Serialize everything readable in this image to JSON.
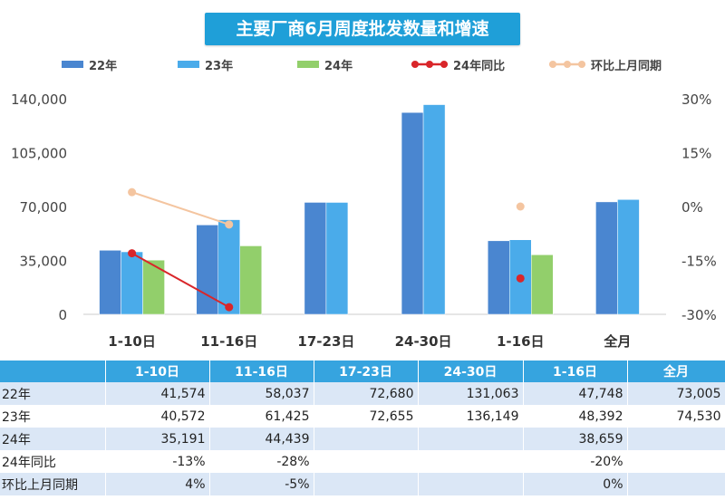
{
  "title": "主要厂商6月周度批发数量和增速",
  "legend": {
    "s22": "22年",
    "s23": "23年",
    "s24": "24年",
    "yoy": "24年同比",
    "mom": "环比上月同期"
  },
  "colors": {
    "s22": "#4a86d0",
    "s23": "#4aabea",
    "s24": "#92cf6b",
    "yoy": "#d9262a",
    "mom": "#f4c5a0",
    "header": "#36a4df",
    "row_band": "#dbe7f6"
  },
  "chart_data": {
    "type": "bar",
    "categories": [
      "1-10日",
      "11-16日",
      "17-23日",
      "24-30日",
      "1-16日",
      "全月"
    ],
    "series": [
      {
        "name": "22年",
        "values": [
          41574,
          58037,
          72680,
          131063,
          47748,
          73005
        ]
      },
      {
        "name": "23年",
        "values": [
          40572,
          61425,
          72655,
          136149,
          48392,
          74530
        ]
      },
      {
        "name": "24年",
        "values": [
          35191,
          44439,
          null,
          null,
          38659,
          null
        ]
      }
    ],
    "line_series": [
      {
        "name": "24年同比",
        "axis": "right",
        "values": [
          -13,
          -28,
          null,
          null,
          -20,
          null
        ]
      },
      {
        "name": "环比上月同期",
        "axis": "right",
        "values": [
          4,
          -5,
          null,
          null,
          0,
          null
        ]
      }
    ],
    "ylim": [
      0,
      140000
    ],
    "yticks": [
      "0",
      "35,000",
      "70,000",
      "105,000",
      "140,000"
    ],
    "y2lim": [
      -30,
      30
    ],
    "y2ticks": [
      "-30%",
      "-15%",
      "0%",
      "15%",
      "30%"
    ],
    "legend_position": "top",
    "grid": false
  },
  "table": {
    "headers": [
      "1-10日",
      "11-16日",
      "17-23日",
      "24-30日",
      "1-16日",
      "全月"
    ],
    "rows": [
      {
        "label": "22年",
        "cells": [
          "41,574",
          "58,037",
          "72,680",
          "131,063",
          "47,748",
          "73,005"
        ]
      },
      {
        "label": "23年",
        "cells": [
          "40,572",
          "61,425",
          "72,655",
          "136,149",
          "48,392",
          "74,530"
        ]
      },
      {
        "label": "24年",
        "cells": [
          "35,191",
          "44,439",
          "",
          "",
          "38,659",
          ""
        ]
      },
      {
        "label": "24年同比",
        "cells": [
          "-13%",
          "-28%",
          "",
          "",
          "-20%",
          ""
        ]
      },
      {
        "label": "环比上月同期",
        "cells": [
          "4%",
          "-5%",
          "",
          "",
          "0%",
          ""
        ]
      }
    ]
  }
}
